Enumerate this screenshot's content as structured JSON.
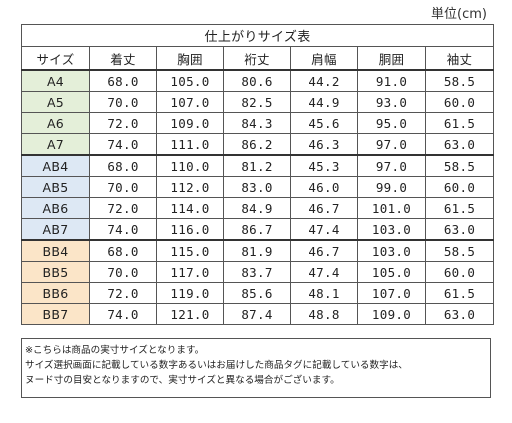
{
  "unit_label": "単位(cm)",
  "table": {
    "title": "仕上がりサイズ表",
    "headers": [
      "サイズ",
      "着丈",
      "胸囲",
      "裄丈",
      "肩幅",
      "胴囲",
      "袖丈"
    ],
    "groups": [
      {
        "name": "A",
        "color": "#e4efd9",
        "rows": [
          [
            "A4",
            "68.0",
            "105.0",
            "80.6",
            "44.2",
            "91.0",
            "58.5"
          ],
          [
            "A5",
            "70.0",
            "107.0",
            "82.5",
            "44.9",
            "93.0",
            "60.0"
          ],
          [
            "A6",
            "72.0",
            "109.0",
            "84.3",
            "45.6",
            "95.0",
            "61.5"
          ],
          [
            "A7",
            "74.0",
            "111.0",
            "86.2",
            "46.3",
            "97.0",
            "63.0"
          ]
        ]
      },
      {
        "name": "AB",
        "color": "#dde8f4",
        "rows": [
          [
            "AB4",
            "68.0",
            "110.0",
            "81.2",
            "45.3",
            "97.0",
            "58.5"
          ],
          [
            "AB5",
            "70.0",
            "112.0",
            "83.0",
            "46.0",
            "99.0",
            "60.0"
          ],
          [
            "AB6",
            "72.0",
            "114.0",
            "84.9",
            "46.7",
            "101.0",
            "61.5"
          ],
          [
            "AB7",
            "74.0",
            "116.0",
            "86.7",
            "47.4",
            "103.0",
            "63.0"
          ]
        ]
      },
      {
        "name": "BB",
        "color": "#fbe5c8",
        "rows": [
          [
            "BB4",
            "68.0",
            "115.0",
            "81.9",
            "46.7",
            "103.0",
            "58.5"
          ],
          [
            "BB5",
            "70.0",
            "117.0",
            "83.7",
            "47.4",
            "105.0",
            "60.0"
          ],
          [
            "BB6",
            "72.0",
            "119.0",
            "85.6",
            "48.1",
            "107.0",
            "61.5"
          ],
          [
            "BB7",
            "74.0",
            "121.0",
            "87.4",
            "48.8",
            "109.0",
            "63.0"
          ]
        ]
      }
    ]
  },
  "notes": [
    "※こちらは商品の実寸サイズとなります。",
    "サイズ選択画面に記載している数字あるいはお届けした商品タグに記載している数字は、",
    "ヌード寸の目安となりますので、実寸サイズと異なる場合がございます。"
  ]
}
